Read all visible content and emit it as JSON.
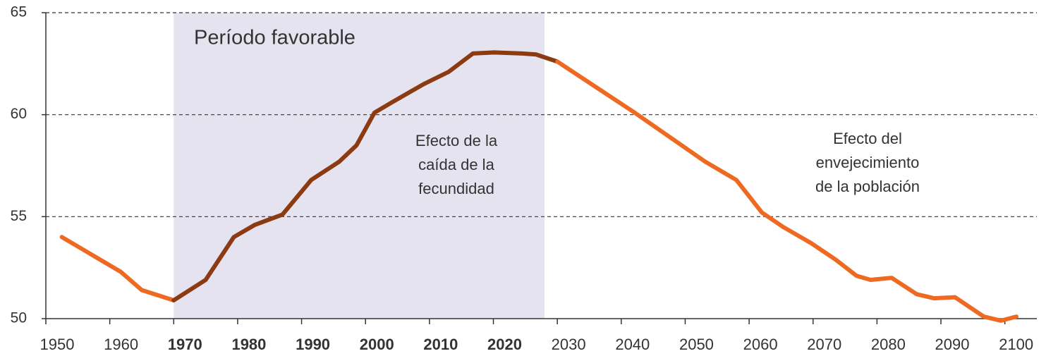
{
  "chart_data": {
    "type": "line",
    "xlim": [
      1950,
      2105
    ],
    "ylim": [
      50,
      65
    ],
    "xticks": [
      1950,
      1960,
      1970,
      1980,
      1990,
      2000,
      2010,
      2020,
      2030,
      2040,
      2050,
      2060,
      2070,
      2080,
      2090,
      2100
    ],
    "yticks": [
      50,
      55,
      60,
      65
    ],
    "grid": true,
    "shade": [
      1970,
      2028
    ],
    "shade_color": "#e6e3f0",
    "series": [
      {
        "color": "#ee6a22",
        "x": [
          1952.5,
          1961.7,
          1965,
          1970
        ],
        "values": [
          54,
          52.3,
          51.4,
          50.9
        ]
      },
      {
        "color": "#8b3a12",
        "x": [
          1970,
          1975,
          1979.4,
          1982.7,
          1987,
          1991.5,
          1995.9,
          1998.6,
          2001.4,
          2004.1,
          2009.1,
          2013,
          2016.8,
          2020.1,
          2024.5,
          2026.7,
          2030
        ],
        "values": [
          50.9,
          51.9,
          54,
          54.6,
          55.1,
          56.8,
          57.7,
          58.5,
          60.1,
          60.6,
          61.5,
          62.1,
          63,
          63.05,
          63,
          62.95,
          62.6
        ]
      },
      {
        "color": "#ee6a22",
        "x": [
          2030,
          2042.1,
          2053.1,
          2058,
          2062,
          2065.3,
          2069.7,
          2073.5,
          2076.8,
          2079,
          2082.3,
          2086.2,
          2088.9,
          2092.2,
          2096.7,
          2099.4,
          2101.8
        ],
        "values": [
          62.6,
          60.1,
          57.7,
          56.8,
          55.2,
          54.5,
          53.7,
          52.9,
          52.1,
          51.9,
          52,
          51.2,
          51,
          51.05,
          50.1,
          49.9,
          50.1
        ]
      }
    ],
    "annotations": [
      {
        "lines": [
          "Período favorable"
        ]
      },
      {
        "lines": [
          "Efecto de la",
          "caída de la",
          "fecundidad"
        ]
      },
      {
        "lines": [
          "Efecto del",
          "envejecimiento",
          "de la población"
        ]
      }
    ]
  }
}
